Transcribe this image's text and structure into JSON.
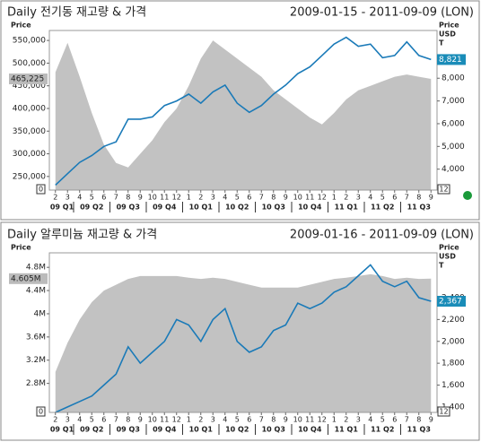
{
  "chart_data": [
    {
      "type": "line",
      "title": "Daily 전기동 재고량 & 가격",
      "date_range": "2009-01-15 - 2011-09-09 (LON)",
      "y_label": "Price",
      "y2_label": [
        "Price",
        "USD",
        "T"
      ],
      "corner_left": "0",
      "corner_right": "12",
      "categories": [
        "2",
        "3",
        "4",
        "5",
        "6",
        "7",
        "8",
        "9",
        "10",
        "11",
        "12",
        "1",
        "2",
        "3",
        "4",
        "5",
        "6",
        "7",
        "8",
        "9",
        "10",
        "11",
        "12",
        "1",
        "2",
        "3",
        "4",
        "5",
        "6",
        "7",
        "8",
        "9"
      ],
      "quarters": [
        "09 Q1",
        "09 Q2",
        "09 Q3",
        "09 Q4",
        "10 Q1",
        "10 Q2",
        "10 Q3",
        "10 Q4",
        "11 Q1",
        "11 Q2",
        "11 Q3"
      ],
      "series": [
        {
          "type": "area",
          "color": "#c2c2c2",
          "last_value_label": "465,225",
          "values": [
            480000,
            545000,
            470000,
            390000,
            320000,
            280000,
            270000,
            300000,
            330000,
            370000,
            400000,
            450000,
            510000,
            550000,
            530000,
            510000,
            490000,
            470000,
            440000,
            420000,
            400000,
            380000,
            365000,
            390000,
            420000,
            440000,
            450000,
            460000,
            470000,
            475000,
            470000,
            465225
          ]
        },
        {
          "type": "line",
          "axis": "y2",
          "color": "#1a7ab8",
          "last_value_label": "8,821",
          "values": [
            3300,
            3800,
            4300,
            4600,
            5000,
            5200,
            6200,
            6200,
            6300,
            6800,
            7000,
            7300,
            6900,
            7400,
            7700,
            6900,
            6500,
            6800,
            7300,
            7700,
            8200,
            8500,
            9000,
            9500,
            9800,
            9400,
            9500,
            8900,
            9000,
            9600,
            9000,
            8821
          ]
        }
      ],
      "ylim": [
        220000,
        572000
      ],
      "yticks": [
        {
          "value": 250000,
          "label": "250,000"
        },
        {
          "value": 300000,
          "label": "300,000"
        },
        {
          "value": 350000,
          "label": "350,000"
        },
        {
          "value": 400000,
          "label": "400,000"
        },
        {
          "value": 450000,
          "label": "450,000"
        },
        {
          "value": 500000,
          "label": "500,000"
        },
        {
          "value": 550000,
          "label": "550,000"
        }
      ],
      "y2lim": [
        3080,
        10100
      ],
      "y2ticks": [
        {
          "value": 4000,
          "label": "4,000"
        },
        {
          "value": 5000,
          "label": "5,000"
        },
        {
          "value": 6000,
          "label": "6,000"
        },
        {
          "value": 7000,
          "label": "7,000"
        },
        {
          "value": 8000,
          "label": "8,000"
        }
      ]
    },
    {
      "type": "line",
      "title": "Daily 알루미늄 재고량 & 가격",
      "date_range": "2009-01-16 - 2011-09-09 (LON)",
      "y_label": "Price",
      "y2_label": [
        "Price",
        "USD",
        "T"
      ],
      "corner_left": "0",
      "corner_right": "12",
      "categories": [
        "2",
        "3",
        "4",
        "5",
        "6",
        "7",
        "8",
        "9",
        "10",
        "11",
        "12",
        "1",
        "2",
        "3",
        "4",
        "5",
        "6",
        "7",
        "8",
        "9",
        "10",
        "11",
        "12",
        "1",
        "2",
        "3",
        "4",
        "5",
        "6",
        "7",
        "8",
        "9"
      ],
      "quarters": [
        "09 Q1",
        "09 Q2",
        "09 Q3",
        "09 Q4",
        "10 Q1",
        "10 Q2",
        "10 Q3",
        "10 Q4",
        "11 Q1",
        "11 Q2",
        "11 Q3"
      ],
      "series": [
        {
          "type": "area",
          "color": "#c2c2c2",
          "last_value_label": "4.605M",
          "values": [
            3000000,
            3500000,
            3900000,
            4200000,
            4400000,
            4500000,
            4600000,
            4650000,
            4650000,
            4650000,
            4650000,
            4620000,
            4600000,
            4620000,
            4600000,
            4550000,
            4500000,
            4450000,
            4450000,
            4450000,
            4450000,
            4500000,
            4550000,
            4600000,
            4620000,
            4650000,
            4680000,
            4650000,
            4600000,
            4620000,
            4600000,
            4605000
          ]
        },
        {
          "type": "line",
          "axis": "y2",
          "color": "#1a7ab8",
          "last_value_label": "2,367",
          "values": [
            1350,
            1400,
            1450,
            1500,
            1600,
            1700,
            1950,
            1800,
            1900,
            2000,
            2200,
            2150,
            2000,
            2200,
            2300,
            2000,
            1900,
            1950,
            2100,
            2150,
            2350,
            2300,
            2350,
            2450,
            2500,
            2600,
            2700,
            2550,
            2500,
            2550,
            2400,
            2367
          ]
        }
      ],
      "ylim": [
        2300000,
        5050000
      ],
      "yticks": [
        {
          "value": 2800000,
          "label": "2.8M"
        },
        {
          "value": 3200000,
          "label": "3.2M"
        },
        {
          "value": 3600000,
          "label": "3.6M"
        },
        {
          "value": 4000000,
          "label": "4M"
        },
        {
          "value": 4400000,
          "label": "4.4M"
        },
        {
          "value": 4800000,
          "label": "4.8M"
        }
      ],
      "y2lim": [
        1350,
        2810
      ],
      "y2ticks": [
        {
          "value": 1400,
          "label": "1,400"
        },
        {
          "value": 1600,
          "label": "1,600"
        },
        {
          "value": 1800,
          "label": "1,800"
        },
        {
          "value": 2000,
          "label": "2,000"
        },
        {
          "value": 2200,
          "label": "2,200"
        },
        {
          "value": 2400,
          "label": "2,400"
        }
      ]
    }
  ]
}
